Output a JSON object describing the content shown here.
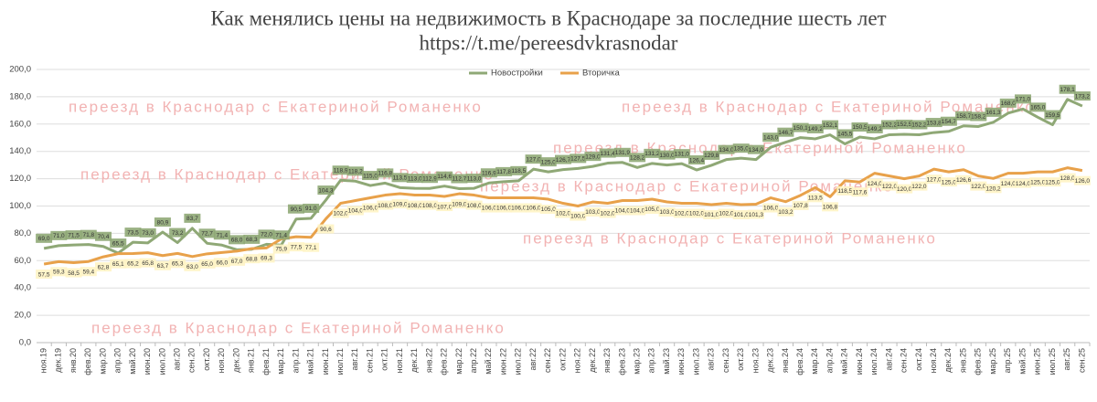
{
  "chart_data": {
    "type": "line",
    "title": "Как менялись цены на недвижимость в Краснодаре за последние шесть лет",
    "subtitle": "https://t.me/pereesdvkrasnodar",
    "watermark": "переезд в Краснодар с Екатериной Романенко",
    "categories": [
      "ноя.19",
      "дек.19",
      "янв.20",
      "фев.20",
      "мар.20",
      "апр.20",
      "май.20",
      "июн.20",
      "июл.20",
      "авг.20",
      "сен.20",
      "окт.20",
      "ноя.20",
      "дек.20",
      "янв.21",
      "фев.21",
      "мар.21",
      "апр.21",
      "май.21",
      "июн.21",
      "июл.21",
      "авг.21",
      "сен.21",
      "окт.21",
      "ноя.21",
      "дек.21",
      "янв.22",
      "фев.22",
      "мар.22",
      "апр.22",
      "май.22",
      "июн.22",
      "июл.22",
      "авг.22",
      "сен.22",
      "окт.22",
      "ноя.22",
      "дек.22",
      "янв.23",
      "фев.23",
      "мар.23",
      "апр.23",
      "май.23",
      "июн.23",
      "июл.23",
      "авг.23",
      "сен.23",
      "окт.23",
      "ноя.23",
      "дек.23",
      "янв.24",
      "фев.24",
      "мар.24",
      "апр.24",
      "май.24",
      "июн.24",
      "июл.24",
      "авг.24",
      "сен.24",
      "окт.24",
      "ноя.24",
      "дек.24",
      "янв.25",
      "фев.25",
      "мар.25",
      "апр.25",
      "май.25",
      "июн.25",
      "июл.25",
      "авг.25",
      "сен.25"
    ],
    "series": [
      {
        "name": "Новостройки",
        "color": "#8fa876",
        "values": [
          69.0,
          71.0,
          71.5,
          71.8,
          70.4,
          65.5,
          73.5,
          73.0,
          80.9,
          73.2,
          83.7,
          72.7,
          71.4,
          68.0,
          68.3,
          72.0,
          71.4,
          90.5,
          91.0,
          104.3,
          118.9,
          118.2,
          115.0,
          116.8,
          113.5,
          113.0,
          112.9,
          114.6,
          112.7,
          113.0,
          116.9,
          117.8,
          118.5,
          127.0,
          125.0,
          126.7,
          127.5,
          129.0,
          131.4,
          131.9,
          128.2,
          131.2,
          130.0,
          131.0,
          126.4,
          129.8,
          134.0,
          135.0,
          134.0,
          143.0,
          146.7,
          150.1,
          149.2,
          152.1,
          145.5,
          150.5,
          149.2,
          152.2,
          152.5,
          152.2,
          153.8,
          154.7,
          158.7,
          158.2,
          161.3,
          168.0,
          171.0,
          165.0,
          159.5,
          178.1,
          173.2
        ],
        "value_labels": [
          "69,0",
          "71,0",
          "71,5",
          "71,8",
          "70,4",
          "65,5",
          "73,5",
          "73,0",
          "80,9",
          "73,2",
          "83,7",
          "72,7",
          "71,4",
          "68,0",
          "68,3",
          "72,0",
          "71,4",
          "90,5",
          "91,0",
          "104,3",
          "118,9",
          "118,2",
          "115,0",
          "116,8",
          "113,5",
          "113,0",
          "112,9",
          "114,6",
          "112,7",
          "113,0",
          "116,9",
          "117,8",
          "118,5",
          "127,0",
          "125,0",
          "126,7",
          "127,5",
          "129,0",
          "131,4",
          "131,9",
          "128,2",
          "131,2",
          "130,0",
          "131,0",
          "126,4",
          "129,8",
          "134,0",
          "135,0",
          "134,0",
          "143,0",
          "146,7",
          "150,1",
          "149,2",
          "152,1",
          "145,5",
          "150,5",
          "149,2",
          "152,2",
          "152,5",
          "152,2",
          "153,8",
          "154,7",
          "158,7",
          "158,2",
          "161,3",
          "168,0",
          "171,0",
          "165,0",
          "159,5",
          "178,1",
          "173,2"
        ]
      },
      {
        "name": "Вторичка",
        "color": "#e8a14a",
        "values": [
          57.5,
          59.3,
          58.5,
          59.4,
          62.8,
          65.1,
          65.2,
          65.8,
          63.7,
          65.3,
          63.0,
          65.0,
          66.0,
          67.0,
          68.8,
          69.3,
          75.9,
          77.5,
          77.1,
          90.6,
          102.0,
          104.0,
          106.0,
          108.0,
          109.0,
          108.0,
          108.0,
          107.0,
          109.0,
          108.0,
          106.0,
          106.0,
          106.0,
          106.0,
          105.0,
          102.0,
          100.0,
          103.0,
          102.0,
          104.0,
          104.0,
          105.0,
          103.0,
          102.0,
          102.0,
          101.0,
          102.0,
          101.0,
          101.3,
          106.0,
          103.2,
          107.8,
          113.5,
          106.8,
          118.5,
          117.6,
          124.0,
          122.0,
          120.0,
          122.0,
          127.0,
          125.0,
          126.6,
          122.0,
          120.2,
          124.0,
          124.0,
          125.0,
          125.0,
          128.0,
          126.0
        ],
        "value_labels": [
          "57,5",
          "59,3",
          "58,5",
          "59,4",
          "62,8",
          "65,1",
          "65,2",
          "65,8",
          "63,7",
          "65,3",
          "63,0",
          "65,0",
          "66,0",
          "67,0",
          "68,8",
          "69,3",
          "75,9",
          "77,5",
          "77,1",
          "90,6",
          "102,0",
          "104,0",
          "106,0",
          "108,0",
          "109,0",
          "108,0",
          "108,0",
          "107,0",
          "109,0",
          "108,0",
          "106,0",
          "106,0",
          "106,0",
          "106,0",
          "105,0",
          "102,0",
          "100,0",
          "103,0",
          "102,0",
          "104,0",
          "104,0",
          "105,0",
          "103,0",
          "102,0",
          "102,0",
          "101,0",
          "102,0",
          "101,0",
          "101,3",
          "106,0",
          "103,2",
          "107,8",
          "113,5",
          "106,8",
          "118,5",
          "117,6",
          "124,0",
          "122,0",
          "120,0",
          "122,0",
          "127,0",
          "125,0",
          "126,6",
          "122,0",
          "120,2",
          "124,0",
          "124,0",
          "125,0",
          "125,0",
          "128,0",
          "126,0"
        ]
      }
    ],
    "ylim": [
      0,
      200
    ],
    "yticks": [
      {
        "value": 0,
        "label": "0,0"
      },
      {
        "value": 20,
        "label": "20,0"
      },
      {
        "value": 40,
        "label": "40,0"
      },
      {
        "value": 60,
        "label": "60,0"
      },
      {
        "value": 80,
        "label": "80,0"
      },
      {
        "value": 100,
        "label": "100,0"
      },
      {
        "value": 120,
        "label": "120,0"
      },
      {
        "value": 140,
        "label": "140,0"
      },
      {
        "value": 160,
        "label": "160,0"
      },
      {
        "value": 180,
        "label": "180,0"
      },
      {
        "value": 200,
        "label": "200,0"
      }
    ],
    "grid": true,
    "legend": "top"
  }
}
